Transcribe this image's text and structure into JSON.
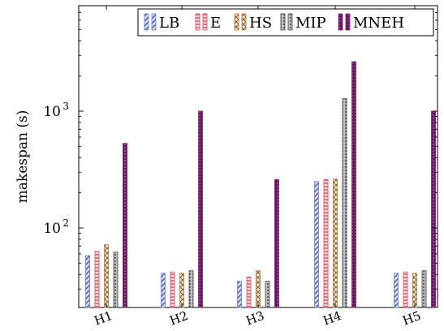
{
  "chart_data": {
    "type": "bar",
    "title": "",
    "xlabel": "",
    "ylabel": "makespan (s)",
    "yscale": "log",
    "ylim": [
      20,
      10000
    ],
    "yticks": [
      100,
      1000
    ],
    "ytick_labels": [
      {
        "base": "10",
        "exp": "2"
      },
      {
        "base": "10",
        "exp": "3"
      }
    ],
    "categories": [
      "H1",
      "H2",
      "H3",
      "H4",
      "H5"
    ],
    "legend_position": "top-right",
    "grid": false,
    "series": [
      {
        "name": "LB",
        "color": "#6f7fd0",
        "pattern": "diagonal-hatch",
        "values": [
          58,
          41,
          35,
          250,
          41
        ]
      },
      {
        "name": "E",
        "color": "#e8455a",
        "pattern": "horizontal-lines",
        "values": [
          63,
          42,
          38,
          260,
          42
        ]
      },
      {
        "name": "HS",
        "color": "#b07a3c",
        "pattern": "crosshatch",
        "values": [
          72,
          41,
          43,
          262,
          41
        ]
      },
      {
        "name": "MIP",
        "color": "#444444",
        "pattern": "dots",
        "values": [
          62,
          43,
          35,
          1280,
          43
        ]
      },
      {
        "name": "MNEH",
        "color": "#7a1f74",
        "pattern": "dense-dots",
        "values": [
          530,
          1000,
          260,
          2650,
          1000
        ]
      }
    ]
  }
}
